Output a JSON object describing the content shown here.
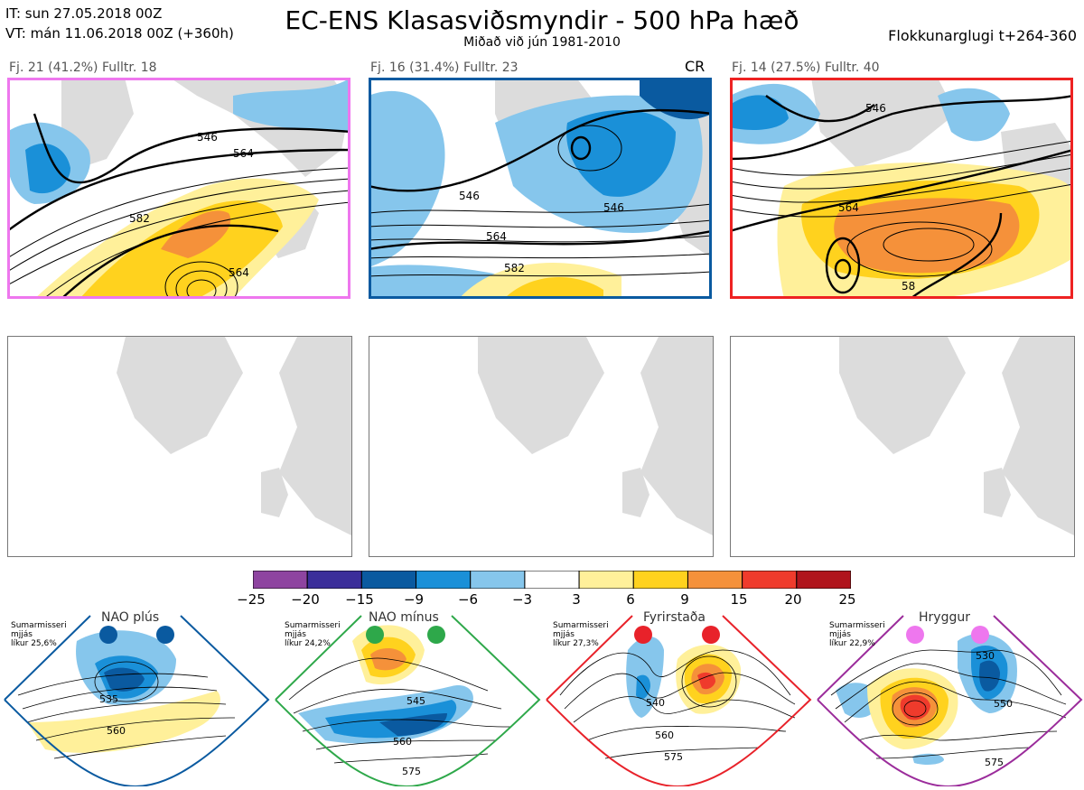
{
  "header": {
    "it_line": "IT: sun 27.05.2018 00Z",
    "vt_line": "VT: mán 11.06.2018 00Z  (+360h)",
    "title": "EC-ENS Klasasviðsmyndir - 500 hPa hæð",
    "subtitle": "Miðað við jún 1981-2010",
    "window": "Flokkunarglugi t+264-360"
  },
  "clusters": [
    {
      "label": "Fj. 21 (41.2%)   Fulltr. 18",
      "border": "#ee77ee",
      "contours": [
        "546",
        "564",
        "582",
        "564"
      ]
    },
    {
      "label": "Fj. 16 (31.4%)   Fulltr. 23",
      "border": "#0a5aa0",
      "tag": "CR",
      "contours": [
        "546",
        "546",
        "564",
        "582"
      ]
    },
    {
      "label": "Fj. 14 (27.5%)   Fulltr. 40",
      "border": "#ee2222",
      "contours": [
        "546",
        "564",
        "58"
      ]
    }
  ],
  "colorbar": {
    "ticks": [
      "−25",
      "−20",
      "−15",
      "−9",
      "−6",
      "−3",
      "3",
      "6",
      "9",
      "15",
      "20",
      "25"
    ],
    "colors": [
      "#8e44a0",
      "#3b2e9a",
      "#0a5aa0",
      "#1a90d8",
      "#86c6ec",
      "#ffffff",
      "#fff09a",
      "#ffd21e",
      "#f5913a",
      "#ef3b2c",
      "#b0141c"
    ]
  },
  "regimes": [
    {
      "title": "NAO plús",
      "season": "Sumarmisseri",
      "freq": "mjjás",
      "prob": "líkur 25,6%",
      "color": "#0a5aa0",
      "labels": [
        "535",
        "560"
      ]
    },
    {
      "title": "NAO mínus",
      "season": "Sumarmisseri",
      "freq": "mjjás",
      "prob": "líkur 24,2%",
      "color": "#2ea84a",
      "labels": [
        "545",
        "560",
        "575"
      ]
    },
    {
      "title": "Fyrirstaða",
      "season": "Sumarmisseri",
      "freq": "mjjás",
      "prob": "líkur 27,3%",
      "color": "#e8222a",
      "labels": [
        "540",
        "560",
        "575"
      ]
    },
    {
      "title": "Hryggur",
      "season": "Sumarmisseri",
      "freq": "mjjás",
      "prob": "líkur 22,9%",
      "color": "#ee77ee",
      "labels": [
        "530",
        "550",
        "575"
      ]
    }
  ]
}
